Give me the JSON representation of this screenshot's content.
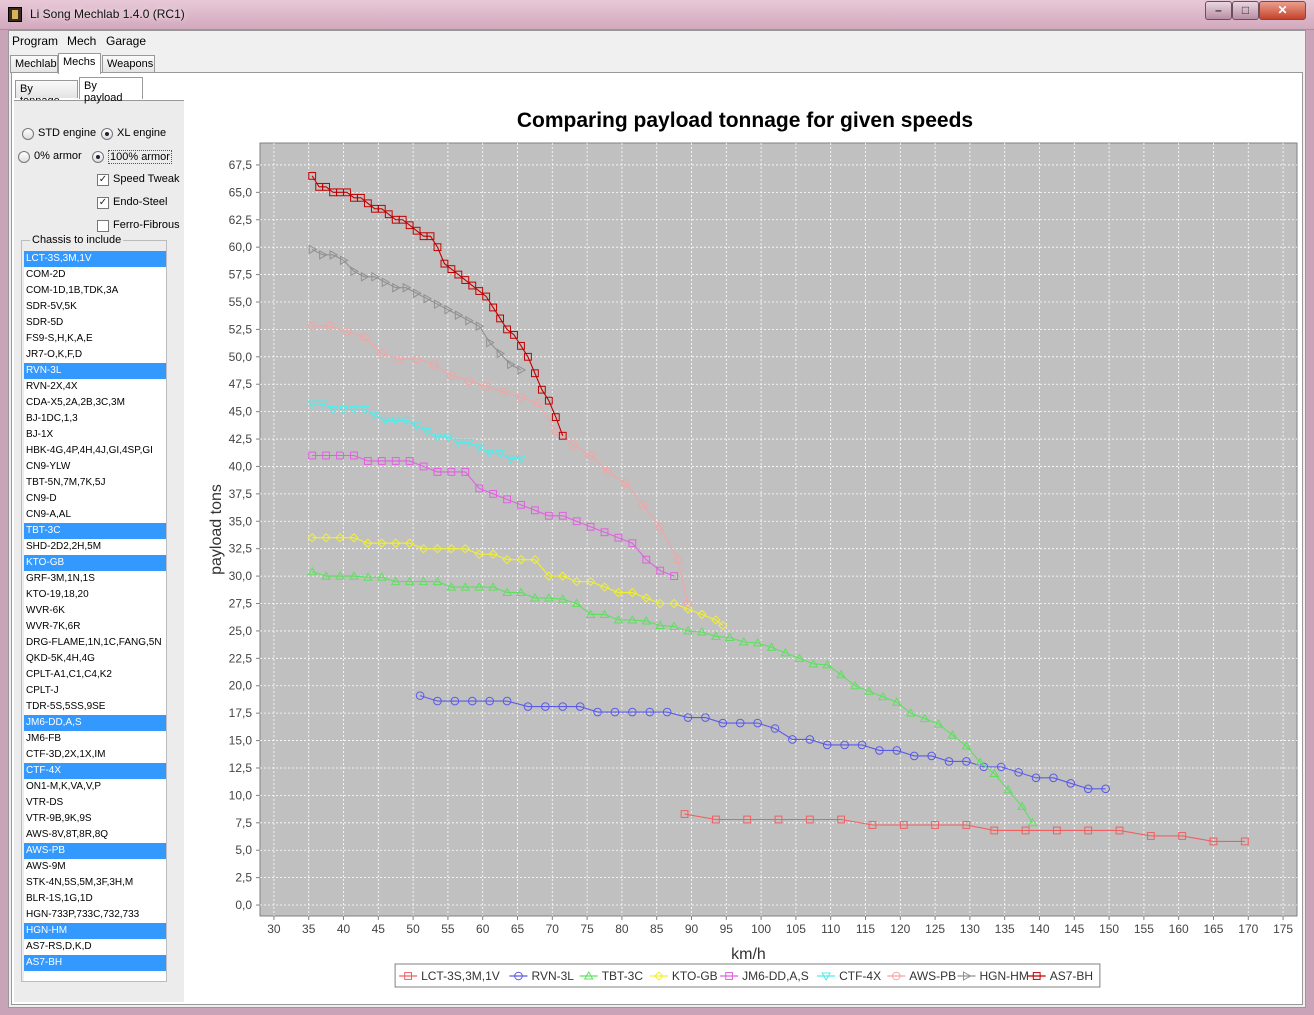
{
  "window": {
    "title": "Li Song Mechlab 1.4.0 (RC1)",
    "min": "–",
    "max": "□",
    "close": "✕"
  },
  "menu": [
    "Program",
    "Mech",
    "Garage"
  ],
  "tabs": [
    "Mechlab",
    "Mechs",
    "Weapons"
  ],
  "subtabs": [
    "By tonnage",
    "By payload"
  ],
  "options": {
    "std_engine": "STD engine",
    "xl_engine": "XL engine",
    "armor0": "0% armor",
    "armor100": "100% armor",
    "speed_tweak": "Speed Tweak",
    "endo_steel": "Endo-Steel",
    "ferro_fibrous": "Ferro-Fibrous"
  },
  "option_state": {
    "xl_engine": true,
    "armor100": true,
    "speed_tweak": true,
    "endo_steel": true,
    "ferro_fibrous": false
  },
  "chassis_legend": "Chassis to include",
  "chassis": [
    {
      "name": "LCT-3S,3M,1V",
      "selected": true
    },
    {
      "name": "COM-2D",
      "selected": false
    },
    {
      "name": "COM-1D,1B,TDK,3A",
      "selected": false
    },
    {
      "name": "SDR-5V,5K",
      "selected": false
    },
    {
      "name": "SDR-5D",
      "selected": false
    },
    {
      "name": "FS9-S,H,K,A,E",
      "selected": false
    },
    {
      "name": "JR7-O,K,F,D",
      "selected": false
    },
    {
      "name": "RVN-3L",
      "selected": true
    },
    {
      "name": "RVN-2X,4X",
      "selected": false
    },
    {
      "name": "CDA-X5,2A,2B,3C,3M",
      "selected": false
    },
    {
      "name": "BJ-1DC,1,3",
      "selected": false
    },
    {
      "name": "BJ-1X",
      "selected": false
    },
    {
      "name": "HBK-4G,4P,4H,4J,GI,4SP,GI",
      "selected": false
    },
    {
      "name": "CN9-YLW",
      "selected": false
    },
    {
      "name": "TBT-5N,7M,7K,5J",
      "selected": false
    },
    {
      "name": "CN9-D",
      "selected": false
    },
    {
      "name": "CN9-A,AL",
      "selected": false
    },
    {
      "name": "TBT-3C",
      "selected": true
    },
    {
      "name": "SHD-2D2,2H,5M",
      "selected": false
    },
    {
      "name": "KTO-GB",
      "selected": true
    },
    {
      "name": "GRF-3M,1N,1S",
      "selected": false
    },
    {
      "name": "KTO-19,18,20",
      "selected": false
    },
    {
      "name": "WVR-6K",
      "selected": false
    },
    {
      "name": "WVR-7K,6R",
      "selected": false
    },
    {
      "name": "DRG-FLAME,1N,1C,FANG,5N",
      "selected": false
    },
    {
      "name": "QKD-5K,4H,4G",
      "selected": false
    },
    {
      "name": "CPLT-A1,C1,C4,K2",
      "selected": false
    },
    {
      "name": "CPLT-J",
      "selected": false
    },
    {
      "name": "TDR-5S,5SS,9SE",
      "selected": false
    },
    {
      "name": "JM6-DD,A,S",
      "selected": true
    },
    {
      "name": "JM6-FB",
      "selected": false
    },
    {
      "name": "CTF-3D,2X,1X,IM",
      "selected": false
    },
    {
      "name": "CTF-4X",
      "selected": true
    },
    {
      "name": "ON1-M,K,VA,V,P",
      "selected": false
    },
    {
      "name": "VTR-DS",
      "selected": false
    },
    {
      "name": "VTR-9B,9K,9S",
      "selected": false
    },
    {
      "name": "AWS-8V,8T,8R,8Q",
      "selected": false
    },
    {
      "name": "AWS-PB",
      "selected": true
    },
    {
      "name": "AWS-9M",
      "selected": false
    },
    {
      "name": "STK-4N,5S,5M,3F,3H,M",
      "selected": false
    },
    {
      "name": "BLR-1S,1G,1D",
      "selected": false
    },
    {
      "name": "HGN-733P,733C,732,733",
      "selected": false
    },
    {
      "name": "HGN-HM",
      "selected": true
    },
    {
      "name": "AS7-RS,D,K,D",
      "selected": false
    },
    {
      "name": "AS7-BH",
      "selected": true
    }
  ],
  "chart_data": {
    "type": "line",
    "title": "Comparing payload tonnage for given speeds",
    "xlabel": "km/h",
    "ylabel": "payload tons",
    "xlim": [
      28,
      177
    ],
    "ylim": [
      -1,
      69.5
    ],
    "x_ticks": [
      30,
      35,
      40,
      45,
      50,
      55,
      60,
      65,
      70,
      75,
      80,
      85,
      90,
      95,
      100,
      105,
      110,
      115,
      120,
      125,
      130,
      135,
      140,
      145,
      150,
      155,
      160,
      165,
      170,
      175
    ],
    "y_ticks": [
      "0,0",
      "2,5",
      "5,0",
      "7,5",
      "10,0",
      "12,5",
      "15,0",
      "17,5",
      "20,0",
      "22,5",
      "25,0",
      "27,5",
      "30,0",
      "32,5",
      "35,0",
      "37,5",
      "40,0",
      "42,5",
      "45,0",
      "47,5",
      "50,0",
      "52,5",
      "55,0",
      "57,5",
      "60,0",
      "62,5",
      "65,0",
      "67,5"
    ],
    "grid": true,
    "legend_position": "bottom",
    "series": [
      {
        "name": "LCT-3S,3M,1V",
        "color": "#f06060",
        "marker": "square",
        "x": [
          89,
          93.5,
          98,
          102.5,
          107,
          111.5,
          116,
          120.5,
          125,
          129.5,
          133.5,
          138,
          142.5,
          147,
          151.5,
          156,
          160.5,
          165,
          169.5
        ],
        "y": [
          8.3,
          7.8,
          7.8,
          7.8,
          7.8,
          7.8,
          7.3,
          7.3,
          7.3,
          7.3,
          6.8,
          6.8,
          6.8,
          6.8,
          6.8,
          6.3,
          6.3,
          5.8,
          5.8
        ]
      },
      {
        "name": "RVN-3L",
        "color": "#5a5ae8",
        "marker": "circle",
        "x": [
          51,
          53.5,
          56,
          58.5,
          61,
          63.5,
          66.5,
          69,
          71.5,
          74,
          76.5,
          79,
          81.5,
          84,
          86.5,
          89.5,
          92,
          94.5,
          97,
          99.5,
          102,
          104.5,
          107,
          109.5,
          112,
          114.5,
          117,
          119.5,
          122,
          124.5,
          127,
          129.5,
          132,
          134.5,
          137,
          139.5,
          142,
          144.5,
          147,
          149.5
        ],
        "y": [
          19.1,
          18.6,
          18.6,
          18.6,
          18.6,
          18.6,
          18.1,
          18.1,
          18.1,
          18.1,
          17.6,
          17.6,
          17.6,
          17.6,
          17.6,
          17.1,
          17.1,
          16.6,
          16.6,
          16.6,
          16.1,
          15.1,
          15.1,
          14.6,
          14.6,
          14.6,
          14.1,
          14.1,
          13.6,
          13.6,
          13.1,
          13.1,
          12.6,
          12.6,
          12.1,
          11.6,
          11.6,
          11.1,
          10.6,
          10.6
        ]
      },
      {
        "name": "TBT-3C",
        "color": "#5ee05e",
        "marker": "triangle-up",
        "x": [
          35.5,
          37.5,
          39.5,
          41.5,
          43.5,
          45.5,
          47.5,
          49.5,
          51.5,
          53.5,
          55.5,
          57.5,
          59.5,
          61.5,
          63.5,
          65.5,
          67.5,
          69.5,
          71.5,
          73.5,
          75.5,
          77.5,
          79.5,
          81.5,
          83.5,
          85.5,
          87.5,
          89.5,
          91.5,
          93.5,
          95.5,
          97.5,
          99.5,
          101.5,
          103.5,
          105.5,
          107.5,
          109.5,
          111.5,
          113.5,
          115.5,
          117.5,
          119.5,
          121.5,
          123.5,
          125.5,
          127.5,
          129.5,
          131.5,
          133.5,
          135.5,
          137.5,
          139
        ],
        "y": [
          30.4,
          30.0,
          30.0,
          30.0,
          29.9,
          29.9,
          29.5,
          29.5,
          29.5,
          29.5,
          29.0,
          29.0,
          29.0,
          29.0,
          28.5,
          28.5,
          28.0,
          28.0,
          27.9,
          27.5,
          26.5,
          26.5,
          26.0,
          26.0,
          25.9,
          25.5,
          25.4,
          25.0,
          24.9,
          24.5,
          24.4,
          24.0,
          23.9,
          23.5,
          23.0,
          22.5,
          22.0,
          21.9,
          21.0,
          20.0,
          19.5,
          19.0,
          18.5,
          17.5,
          17.0,
          16.5,
          15.5,
          14.5,
          13.0,
          12.0,
          10.5,
          9.0,
          7.5
        ]
      },
      {
        "name": "KTO-GB",
        "color": "#f0f030",
        "marker": "diamond",
        "x": [
          35.5,
          37.5,
          39.5,
          41.5,
          43.5,
          45.5,
          47.5,
          49.5,
          51.5,
          53.5,
          55.5,
          57.5,
          59.5,
          61.5,
          63.5,
          65.5,
          67.5,
          69.5,
          71.5,
          73.5,
          75.5,
          77.5,
          79.5,
          81.5,
          83.5,
          85.5,
          87.5,
          89.5,
          91.5,
          93.5,
          94.5
        ],
        "y": [
          33.5,
          33.5,
          33.5,
          33.5,
          33.0,
          33.0,
          33.0,
          33.0,
          32.5,
          32.5,
          32.5,
          32.5,
          32.0,
          32.0,
          31.5,
          31.5,
          31.5,
          30.0,
          30.0,
          29.5,
          29.5,
          29.0,
          28.5,
          28.5,
          28.0,
          27.5,
          27.5,
          27.0,
          26.5,
          26.0,
          25.5
        ]
      },
      {
        "name": "JM6-DD,A,S",
        "color": "#e060e0",
        "marker": "square",
        "x": [
          35.5,
          37.5,
          39.5,
          41.5,
          43.5,
          45.5,
          47.5,
          49.5,
          51.5,
          53.5,
          55.5,
          57.5,
          59.5,
          61.5,
          63.5,
          65.5,
          67.5,
          69.5,
          71.5,
          73.5,
          75.5,
          77.5,
          79.5,
          81.5,
          83.5,
          85.5,
          87.5
        ],
        "y": [
          41.0,
          41.0,
          41.0,
          41.0,
          40.5,
          40.5,
          40.5,
          40.5,
          40.0,
          39.5,
          39.5,
          39.5,
          38.0,
          37.5,
          37.0,
          36.5,
          36.0,
          35.5,
          35.5,
          35.0,
          34.5,
          34.0,
          33.5,
          33.0,
          31.5,
          30.5,
          30.0
        ]
      },
      {
        "name": "CTF-4X",
        "color": "#50ecec",
        "marker": "triangle-down",
        "x": [
          35.5,
          37,
          38.5,
          40,
          41.5,
          43,
          44.5,
          46,
          47.5,
          49,
          50.5,
          52,
          53.5,
          55,
          56.5,
          58,
          59.5,
          61,
          62.5,
          64,
          65.5
        ],
        "y": [
          45.7,
          45.7,
          45.2,
          45.2,
          45.2,
          45.2,
          44.7,
          44.2,
          44.2,
          44.2,
          43.7,
          43.2,
          42.7,
          42.7,
          42.2,
          42.2,
          41.7,
          41.2,
          41.2,
          40.7,
          40.7
        ]
      },
      {
        "name": "AWS-PB",
        "color": "#f4a4a4",
        "marker": "circle",
        "x": [
          35.5,
          38,
          40.5,
          43,
          45.5,
          48,
          50.5,
          53,
          55.5,
          58,
          60.5,
          63,
          65.5,
          68,
          70.5,
          73,
          75.5,
          78,
          80.5,
          83,
          85.5,
          88,
          89.5
        ],
        "y": [
          52.8,
          52.8,
          52.3,
          51.8,
          50.3,
          49.8,
          49.8,
          49.3,
          48.3,
          47.8,
          47.3,
          46.8,
          46.3,
          45.8,
          43.2,
          42.0,
          41.0,
          39.5,
          38.5,
          36.5,
          34.5,
          31.5,
          27.5
        ]
      },
      {
        "name": "HGN-HM",
        "color": "#909090",
        "marker": "triangle-right",
        "x": [
          35.5,
          37,
          38.5,
          40,
          41.5,
          43,
          44.5,
          46,
          47.5,
          49,
          50.5,
          52,
          53.5,
          55,
          56.5,
          58,
          59.5,
          61,
          62.5,
          64,
          65.5
        ],
        "y": [
          59.8,
          59.3,
          59.3,
          58.8,
          57.8,
          57.3,
          57.3,
          56.8,
          56.3,
          56.3,
          55.8,
          55.3,
          54.8,
          54.3,
          53.8,
          53.3,
          52.8,
          51.3,
          50.3,
          49.3,
          48.8
        ]
      },
      {
        "name": "AS7-BH",
        "color": "#c00000",
        "marker": "square",
        "x": [
          35.5,
          36.5,
          37.5,
          38.5,
          39.5,
          40.5,
          41.5,
          42.5,
          43.5,
          44.5,
          45.5,
          46.5,
          47.5,
          48.5,
          49.5,
          50.5,
          51.5,
          52.5,
          53.5,
          54.5,
          55.5,
          56.5,
          57.5,
          58.5,
          59.5,
          60.5,
          61.5,
          62.5,
          63.5,
          64.5,
          65.5,
          66.5,
          67.5,
          68.5,
          69.5,
          70.5,
          71.5
        ],
        "y": [
          66.5,
          65.5,
          65.5,
          65.0,
          65.0,
          65.0,
          64.5,
          64.5,
          64.0,
          63.5,
          63.5,
          63.0,
          62.5,
          62.5,
          62.0,
          61.5,
          61.0,
          61.0,
          60.0,
          58.5,
          58.0,
          57.5,
          57.0,
          56.5,
          56.0,
          55.5,
          54.5,
          53.5,
          52.5,
          52.0,
          51.0,
          50.0,
          48.5,
          47.0,
          46.0,
          44.5,
          42.8
        ]
      }
    ]
  }
}
